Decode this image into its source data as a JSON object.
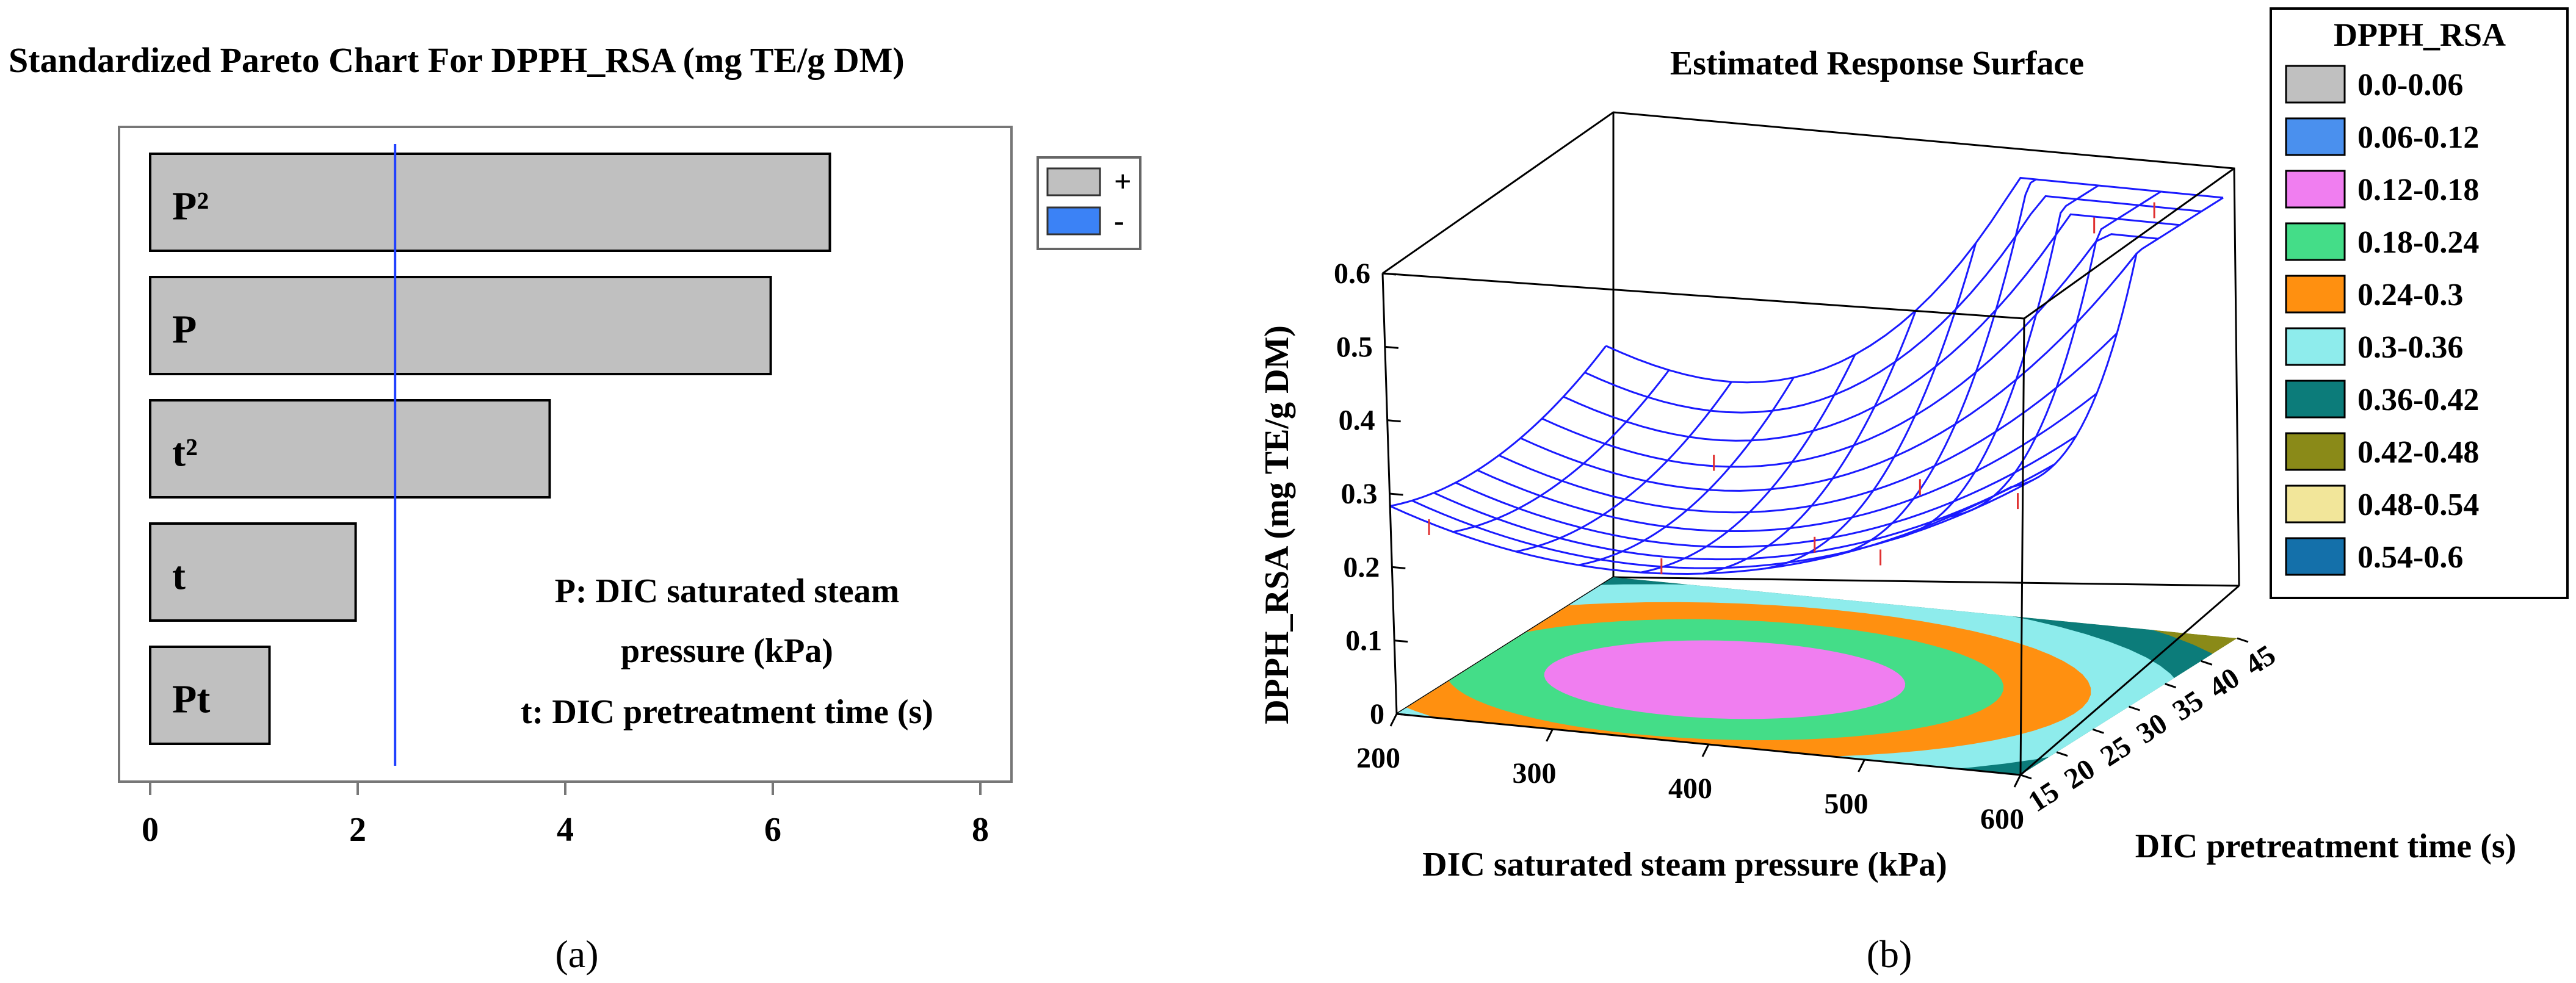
{
  "colors": {
    "bar_positive": "#c0c0c0",
    "bar_negative": "#3b82f6",
    "reference_line": "#1f3fff",
    "mesh": "#1a1aff",
    "marker": "#e03030"
  },
  "chart_data": [
    {
      "type": "bar",
      "orientation": "horizontal",
      "title": "Standardized Pareto Chart For DPPH_RSA (mg TE/g DM)",
      "categories": [
        "P²",
        "P",
        "t²",
        "t",
        "Pt"
      ],
      "values": [
        6.55,
        5.98,
        3.85,
        1.98,
        1.15
      ],
      "signs": [
        "+",
        "+",
        "+",
        "+",
        "+"
      ],
      "xlim": [
        -0.3,
        8.3
      ],
      "xticks": [
        0,
        2,
        4,
        6,
        8
      ],
      "xtick_labels": [
        "0",
        "2",
        "4",
        "6",
        "8"
      ],
      "reference_value": 2.36,
      "legend": [
        {
          "label": "+",
          "color": "#c0c0c0"
        },
        {
          "label": "-",
          "color": "#3b82f6"
        }
      ],
      "annotation": [
        "P: DIC saturated steam",
        "pressure (kPa)",
        "t: DIC pretreatment time (s)"
      ],
      "panel_label": "(a)"
    },
    {
      "type": "surface",
      "title": "Estimated Response Surface",
      "xlabel": "DIC saturated steam pressure (kPa)",
      "ylabel": "DIC pretreatment time (s)",
      "zlabel": "DPPH_RSA (mg TE/g DM)",
      "xlim": [
        200,
        600
      ],
      "ylim": [
        15,
        45
      ],
      "zlim": [
        0,
        0.6
      ],
      "xticks": [
        "200",
        "300",
        "400",
        "500",
        "600"
      ],
      "yticks": [
        "15",
        "20",
        "25",
        "30",
        "35",
        "40",
        "45"
      ],
      "zticks": [
        "0",
        "0.1",
        "0.2",
        "0.3",
        "0.4",
        "0.5",
        "0.6"
      ],
      "legend_title": "DPPH_RSA",
      "legend": [
        {
          "label": "0.0-0.06",
          "color": "#c0c0c0"
        },
        {
          "label": "0.06-0.12",
          "color": "#4a90ee"
        },
        {
          "label": "0.12-0.18",
          "color": "#f07ef0"
        },
        {
          "label": "0.18-0.24",
          "color": "#44dd88"
        },
        {
          "label": "0.24-0.3",
          "color": "#ff9010"
        },
        {
          "label": "0.3-0.36",
          "color": "#8eecec"
        },
        {
          "label": "0.36-0.42",
          "color": "#0c7c7a"
        },
        {
          "label": "0.42-0.48",
          "color": "#8a8a18"
        },
        {
          "label": "0.48-0.54",
          "color": "#f2e69a"
        },
        {
          "label": "0.54-0.6",
          "color": "#1470aa"
        }
      ],
      "panel_label": "(b)"
    }
  ]
}
